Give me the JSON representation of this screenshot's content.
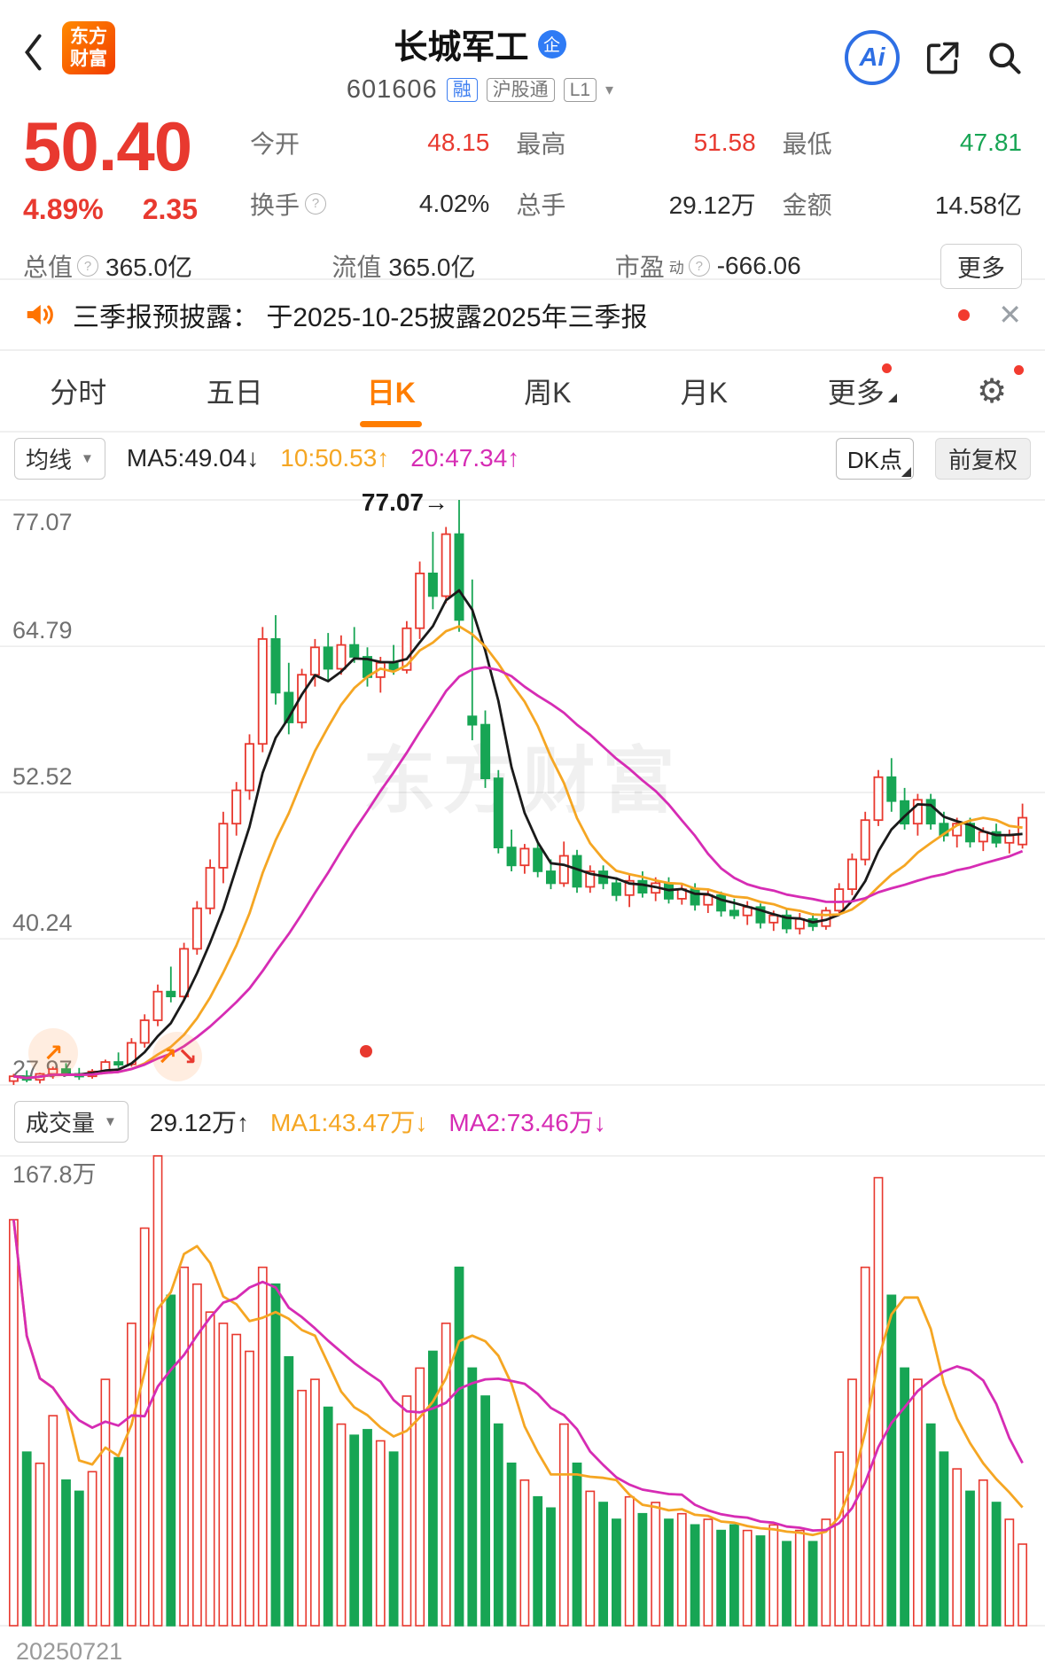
{
  "header": {
    "logo_line1": "东方",
    "logo_line2": "财富",
    "title": "长城军工",
    "title_badge": "企",
    "code": "601606",
    "tags": [
      "融",
      "沪股通",
      "L1"
    ],
    "ai_label": "Ai"
  },
  "quote": {
    "price": "50.40",
    "change_pct": "4.89%",
    "change_amt": "2.35",
    "stats": [
      {
        "label": "今开",
        "value": "48.15"
      },
      {
        "label": "最高",
        "value": "51.58"
      },
      {
        "label": "最低",
        "value": "47.81"
      },
      {
        "label": "换手",
        "value": "4.02%"
      },
      {
        "label": "总手",
        "value": "29.12万"
      },
      {
        "label": "金额",
        "value": "14.58亿"
      }
    ],
    "stats2": [
      {
        "label": "总值",
        "value": "365.0亿"
      },
      {
        "label": "流值",
        "value": "365.0亿"
      },
      {
        "label": "市盈",
        "sub": "动",
        "value": "-666.06"
      }
    ],
    "more_label": "更多"
  },
  "news": {
    "text": "三季报预披露： 于2025-10-25披露2025年三季报"
  },
  "tabs": [
    {
      "label": "分时"
    },
    {
      "label": "五日"
    },
    {
      "label": "日K",
      "active": true
    },
    {
      "label": "周K"
    },
    {
      "label": "月K"
    },
    {
      "label": "更多",
      "dot": true
    }
  ],
  "toolbar": {
    "ma_selector": "均线",
    "ma5": "MA5:49.04↓",
    "ma10": "10:50.53↑",
    "ma20": "20:47.34↑",
    "dk": "DK点",
    "fuquan": "前复权"
  },
  "vol_toolbar": {
    "selector": "成交量",
    "current": "29.12万↑",
    "ma1": "MA1:43.47万↓",
    "ma2": "MA2:73.46万↓"
  },
  "footer": {
    "date": "20250721"
  },
  "icons": {
    "caret_down": "▼",
    "tag_caret": "▾",
    "close": "✕",
    "gear": "⚙",
    "info": "?",
    "marker_up": "↗",
    "marker_down": "↘"
  },
  "chart_data": {
    "type": "candlestick",
    "title": "长城军工 601606 日K 前复权",
    "y_labels": [
      77.07,
      64.79,
      52.52,
      40.24,
      27.97
    ],
    "price_max": 77.07,
    "price_min": 27.97,
    "peak_annotation": "77.07→",
    "peak_index": 34,
    "watermark": "东方财富",
    "x_start_label": "20250721",
    "ma_periods": [
      5,
      10,
      20
    ],
    "vol_ma_periods": [
      5,
      10
    ],
    "volume_max": 167.8,
    "volume_max_label": "167.8万",
    "grid": true,
    "legend_position": "top",
    "colors": {
      "up": "#e8392f",
      "down": "#17a554",
      "ma5": "#1a1a1a",
      "ma10": "#f5a623",
      "ma20": "#d62cb4",
      "accent": "#ff7d00"
    },
    "candles": [
      [
        28.3,
        28.9,
        27.97,
        28.7
      ],
      [
        28.7,
        29.2,
        28.2,
        28.4
      ],
      [
        28.4,
        29.0,
        28.1,
        28.9
      ],
      [
        28.9,
        29.5,
        28.5,
        29.3
      ],
      [
        29.3,
        29.8,
        28.7,
        28.9
      ],
      [
        28.9,
        29.4,
        28.4,
        28.7
      ],
      [
        28.7,
        29.3,
        28.5,
        29.1
      ],
      [
        29.1,
        30.1,
        28.9,
        29.9
      ],
      [
        29.9,
        30.7,
        29.4,
        29.7
      ],
      [
        29.7,
        31.9,
        29.5,
        31.5
      ],
      [
        31.5,
        33.9,
        31.1,
        33.4
      ],
      [
        33.4,
        36.4,
        32.9,
        35.8
      ],
      [
        35.8,
        37.9,
        34.9,
        35.4
      ],
      [
        35.4,
        39.9,
        35.1,
        39.4
      ],
      [
        39.4,
        43.4,
        38.9,
        42.8
      ],
      [
        42.8,
        46.9,
        42.3,
        46.2
      ],
      [
        46.2,
        50.9,
        44.9,
        49.9
      ],
      [
        49.9,
        53.4,
        48.9,
        52.7
      ],
      [
        52.7,
        57.4,
        51.9,
        56.6
      ],
      [
        56.6,
        66.4,
        55.9,
        65.4
      ],
      [
        65.4,
        67.4,
        59.9,
        60.9
      ],
      [
        60.9,
        63.4,
        57.4,
        58.4
      ],
      [
        58.4,
        62.9,
        57.9,
        62.4
      ],
      [
        62.4,
        65.4,
        61.4,
        64.7
      ],
      [
        64.7,
        65.9,
        61.9,
        62.9
      ],
      [
        62.9,
        65.7,
        62.4,
        64.9
      ],
      [
        64.9,
        66.4,
        63.4,
        63.9
      ],
      [
        63.9,
        64.7,
        61.4,
        62.2
      ],
      [
        62.2,
        63.9,
        60.9,
        63.4
      ],
      [
        63.4,
        64.9,
        62.4,
        62.8
      ],
      [
        62.8,
        66.9,
        62.5,
        66.3
      ],
      [
        66.3,
        71.9,
        65.4,
        70.9
      ],
      [
        70.9,
        74.4,
        67.9,
        69.0
      ],
      [
        69.0,
        74.8,
        68.4,
        74.2
      ],
      [
        74.2,
        77.07,
        66.0,
        67.0
      ],
      [
        58.9,
        70.4,
        56.9,
        58.2
      ],
      [
        58.2,
        59.4,
        52.9,
        53.7
      ],
      [
        53.7,
        54.4,
        47.4,
        47.9
      ],
      [
        47.9,
        49.4,
        45.9,
        46.4
      ],
      [
        46.4,
        48.2,
        45.7,
        47.8
      ],
      [
        47.8,
        48.4,
        45.4,
        45.9
      ],
      [
        45.9,
        46.9,
        44.4,
        44.9
      ],
      [
        44.9,
        48.4,
        44.6,
        47.2
      ],
      [
        47.2,
        47.7,
        44.1,
        44.6
      ],
      [
        44.6,
        46.4,
        44.1,
        45.9
      ],
      [
        45.9,
        46.4,
        44.4,
        44.9
      ],
      [
        44.9,
        45.4,
        43.4,
        43.9
      ],
      [
        43.9,
        45.6,
        42.9,
        45.1
      ],
      [
        45.1,
        45.9,
        43.7,
        44.1
      ],
      [
        44.1,
        45.4,
        43.4,
        44.9
      ],
      [
        44.9,
        45.4,
        43.2,
        43.6
      ],
      [
        43.6,
        44.9,
        43.1,
        44.4
      ],
      [
        44.4,
        44.9,
        42.6,
        43.1
      ],
      [
        43.1,
        44.4,
        42.4,
        43.9
      ],
      [
        43.9,
        44.2,
        42.1,
        42.6
      ],
      [
        42.6,
        43.6,
        41.9,
        42.2
      ],
      [
        42.2,
        43.4,
        41.4,
        42.9
      ],
      [
        42.9,
        43.2,
        41.1,
        41.6
      ],
      [
        41.6,
        42.6,
        40.9,
        42.2
      ],
      [
        42.2,
        42.7,
        40.7,
        41.1
      ],
      [
        41.1,
        42.4,
        40.6,
        41.9
      ],
      [
        41.9,
        42.4,
        40.9,
        41.3
      ],
      [
        41.3,
        42.9,
        41.0,
        42.6
      ],
      [
        42.6,
        44.9,
        42.4,
        44.4
      ],
      [
        44.4,
        47.4,
        43.9,
        46.9
      ],
      [
        46.9,
        50.9,
        46.4,
        50.2
      ],
      [
        50.2,
        54.4,
        49.7,
        53.8
      ],
      [
        53.8,
        55.4,
        50.9,
        51.8
      ],
      [
        51.8,
        52.9,
        49.4,
        49.9
      ],
      [
        49.9,
        52.4,
        48.9,
        51.9
      ],
      [
        51.9,
        52.4,
        49.4,
        49.9
      ],
      [
        49.9,
        50.9,
        48.4,
        48.9
      ],
      [
        48.9,
        50.4,
        47.9,
        49.9
      ],
      [
        49.9,
        50.4,
        47.9,
        48.4
      ],
      [
        48.4,
        49.6,
        47.6,
        49.2
      ],
      [
        49.2,
        49.9,
        47.9,
        48.3
      ],
      [
        48.3,
        49.4,
        47.4,
        48.9
      ],
      [
        48.15,
        51.58,
        47.81,
        50.4
      ]
    ],
    "volumes": [
      145,
      62,
      58,
      75,
      52,
      48,
      55,
      88,
      60,
      108,
      142,
      167.8,
      118,
      128,
      122,
      112,
      108,
      104,
      98,
      128,
      122,
      96,
      84,
      88,
      78,
      72,
      68,
      70,
      66,
      62,
      82,
      92,
      98,
      108,
      128,
      92,
      82,
      72,
      58,
      52,
      46,
      42,
      72,
      58,
      48,
      44,
      38,
      46,
      40,
      44,
      38,
      40,
      36,
      38,
      34,
      36,
      34,
      32,
      36,
      30,
      34,
      30,
      38,
      62,
      88,
      128,
      160,
      118,
      92,
      88,
      72,
      62,
      56,
      48,
      52,
      44,
      38,
      29.12
    ]
  }
}
